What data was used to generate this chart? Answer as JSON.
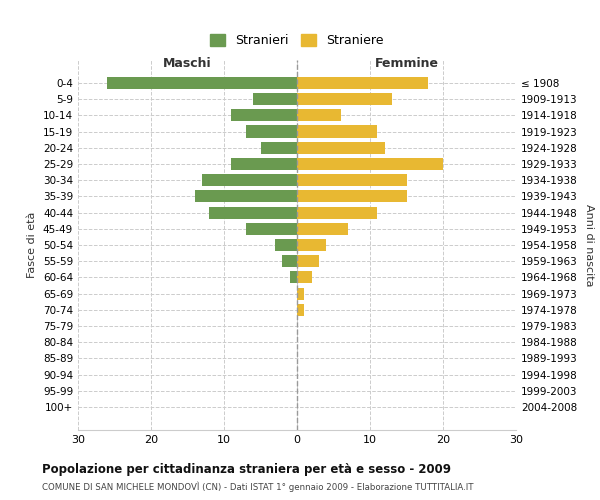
{
  "age_groups": [
    "0-4",
    "5-9",
    "10-14",
    "15-19",
    "20-24",
    "25-29",
    "30-34",
    "35-39",
    "40-44",
    "45-49",
    "50-54",
    "55-59",
    "60-64",
    "65-69",
    "70-74",
    "75-79",
    "80-84",
    "85-89",
    "90-94",
    "95-99",
    "100+"
  ],
  "birth_years": [
    "2004-2008",
    "1999-2003",
    "1994-1998",
    "1989-1993",
    "1984-1988",
    "1979-1983",
    "1974-1978",
    "1969-1973",
    "1964-1968",
    "1959-1963",
    "1954-1958",
    "1949-1953",
    "1944-1948",
    "1939-1943",
    "1934-1938",
    "1929-1933",
    "1924-1928",
    "1919-1923",
    "1914-1918",
    "1909-1913",
    "≤ 1908"
  ],
  "males": [
    26,
    6,
    9,
    7,
    5,
    9,
    13,
    14,
    12,
    7,
    3,
    2,
    1,
    0,
    0,
    0,
    0,
    0,
    0,
    0,
    0
  ],
  "females": [
    18,
    13,
    6,
    11,
    12,
    20,
    15,
    15,
    11,
    7,
    4,
    3,
    2,
    1,
    1,
    0,
    0,
    0,
    0,
    0,
    0
  ],
  "male_color": "#6a9a50",
  "female_color": "#e8b832",
  "title": "Popolazione per cittadinanza straniera per età e sesso - 2009",
  "subtitle": "COMUNE DI SAN MICHELE MONDOVÌ (CN) - Dati ISTAT 1° gennaio 2009 - Elaborazione TUTTITALIA.IT",
  "xlabel_left": "Maschi",
  "xlabel_right": "Femmine",
  "ylabel_left": "Fasce di età",
  "ylabel_right": "Anni di nascita",
  "legend_male": "Stranieri",
  "legend_female": "Straniere",
  "xlim": 30,
  "background_color": "#ffffff",
  "grid_color": "#cccccc"
}
